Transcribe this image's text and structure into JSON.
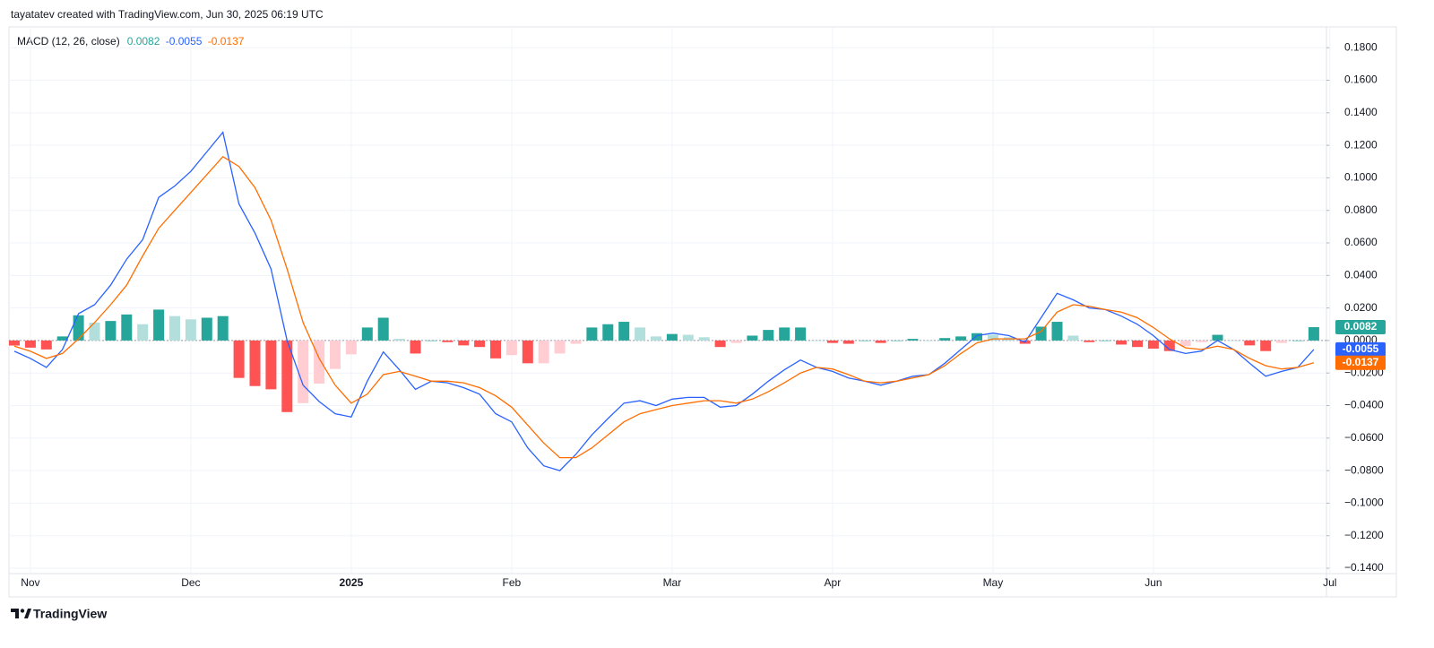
{
  "header": {
    "credit": "tayatatev created with TradingView.com, Jun 30, 2025 06:19 UTC"
  },
  "footer": {
    "brand": "TradingView"
  },
  "chart_data": {
    "type": "macd",
    "title": "MACD (12, 26, close)",
    "categories": [
      null,
      "Nov",
      null,
      null,
      null,
      null,
      null,
      null,
      null,
      null,
      null,
      "Dec",
      null,
      null,
      null,
      null,
      null,
      null,
      null,
      null,
      null,
      "2025",
      null,
      null,
      null,
      null,
      null,
      null,
      null,
      null,
      null,
      "Feb",
      null,
      null,
      null,
      null,
      null,
      null,
      null,
      null,
      null,
      "Mar",
      null,
      null,
      null,
      null,
      null,
      null,
      null,
      null,
      null,
      "Apr",
      null,
      null,
      null,
      null,
      null,
      null,
      null,
      null,
      null,
      "May",
      null,
      null,
      null,
      null,
      null,
      null,
      null,
      null,
      null,
      "Jun",
      null,
      null,
      null,
      null,
      null,
      null,
      null,
      null,
      null,
      null,
      "Jul"
    ],
    "series": [
      {
        "type": "histogram",
        "colors": [
          "#26a69a",
          "#b2dfdb",
          "#ffcdd2",
          "#ff5252"
        ],
        "color": "#26a69a",
        "values": [
          -0.0031,
          -0.0044,
          -0.0055,
          0.0025,
          0.0155,
          0.011,
          0.012,
          0.016,
          0.01,
          0.019,
          0.015,
          0.013,
          0.014,
          0.015,
          -0.023,
          -0.028,
          -0.03,
          -0.044,
          -0.0385,
          -0.0265,
          -0.0175,
          -0.0085,
          0.008,
          0.014,
          0.001,
          -0.008,
          0,
          -0.001,
          -0.003,
          -0.004,
          -0.011,
          -0.009,
          -0.014,
          -0.014,
          -0.008,
          -0.002,
          0.008,
          0.01,
          0.0115,
          0.008,
          0.0025,
          0.004,
          0.0035,
          0.002,
          -0.004,
          -0.0015,
          0.003,
          0.0065,
          0.008,
          0.008,
          0,
          -0.0015,
          -0.002,
          0,
          -0.0015,
          0,
          0.001,
          0,
          0.0015,
          0.0025,
          0.0045,
          0.0035,
          0.002,
          -0.002,
          0.0085,
          0.0115,
          0.003,
          -0.001,
          0,
          -0.0025,
          -0.004,
          -0.005,
          -0.0065,
          -0.0035,
          -0.001,
          0.0035,
          0,
          -0.003,
          -0.0065,
          -0.0015,
          0,
          0.0082,
          null
        ]
      },
      {
        "type": "line",
        "color": "#2962ff",
        "values": [
          -0.0066,
          -0.011,
          -0.0165,
          -0.0055,
          0.0165,
          0.022,
          0.034,
          0.05,
          0.062,
          0.088,
          0.095,
          0.104,
          0.116,
          0.128,
          0.084,
          0.066,
          0.044,
          0,
          -0.0275,
          -0.0375,
          -0.045,
          -0.047,
          -0.025,
          -0.007,
          -0.018,
          -0.03,
          -0.025,
          -0.026,
          -0.029,
          -0.033,
          -0.045,
          -0.05,
          -0.066,
          -0.077,
          -0.08,
          -0.07,
          -0.058,
          -0.048,
          -0.0385,
          -0.037,
          -0.04,
          -0.036,
          -0.035,
          -0.035,
          -0.041,
          -0.04,
          -0.033,
          -0.025,
          -0.018,
          -0.012,
          -0.0165,
          -0.019,
          -0.023,
          -0.025,
          -0.0275,
          -0.025,
          -0.022,
          -0.021,
          -0.014,
          -0.0055,
          0.003,
          0.0045,
          0.003,
          -0.001,
          0.014,
          0.029,
          0.025,
          0.02,
          0.019,
          0.015,
          0.01,
          0.003,
          -0.0055,
          -0.008,
          -0.0065,
          0,
          -0.0055,
          -0.014,
          -0.022,
          -0.019,
          -0.0165,
          -0.0055,
          null
        ]
      },
      {
        "type": "line",
        "color": "#ff6d00",
        "values": [
          -0.0035,
          -0.0066,
          -0.011,
          -0.008,
          0.001,
          0.011,
          0.022,
          0.034,
          0.052,
          0.069,
          0.08,
          0.091,
          0.102,
          0.113,
          0.107,
          0.094,
          0.074,
          0.044,
          0.011,
          -0.011,
          -0.0275,
          -0.0385,
          -0.033,
          -0.021,
          -0.019,
          -0.022,
          -0.025,
          -0.025,
          -0.026,
          -0.029,
          -0.034,
          -0.041,
          -0.052,
          -0.063,
          -0.072,
          -0.072,
          -0.066,
          -0.058,
          -0.05,
          -0.045,
          -0.0425,
          -0.04,
          -0.0385,
          -0.037,
          -0.037,
          -0.0385,
          -0.036,
          -0.0315,
          -0.026,
          -0.02,
          -0.0165,
          -0.0175,
          -0.021,
          -0.025,
          -0.026,
          -0.025,
          -0.023,
          -0.021,
          -0.0155,
          -0.008,
          -0.0015,
          0.001,
          0.001,
          0.001,
          0.0055,
          0.0175,
          0.022,
          0.021,
          0.019,
          0.0175,
          0.014,
          0.008,
          0.001,
          -0.0045,
          -0.0055,
          -0.0035,
          -0.0055,
          -0.011,
          -0.0155,
          -0.0175,
          -0.0165,
          -0.0137,
          null
        ]
      }
    ],
    "ylim": [
      -0.14,
      0.1928
    ],
    "yticks": [
      {
        "value": 0.18,
        "label": "0.1800"
      },
      {
        "value": 0.16,
        "label": "0.1600"
      },
      {
        "value": 0.14,
        "label": "0.1400"
      },
      {
        "value": 0.12,
        "label": "0.1200"
      },
      {
        "value": 0.1,
        "label": "0.1000"
      },
      {
        "value": 0.08,
        "label": "0.0800"
      },
      {
        "value": 0.06,
        "label": "0.0600"
      },
      {
        "value": 0.04,
        "label": "0.0400"
      },
      {
        "value": 0.02,
        "label": "0.0200"
      },
      {
        "value": 0,
        "label": "0.0000"
      },
      {
        "value": -0.02,
        "label": "−0.0200"
      },
      {
        "value": -0.04,
        "label": "−0.0400"
      },
      {
        "value": -0.06,
        "label": "−0.0600"
      },
      {
        "value": -0.08,
        "label": "−0.0800"
      },
      {
        "value": -0.1,
        "label": "−0.1000"
      },
      {
        "value": -0.12,
        "label": "−0.1200"
      },
      {
        "value": -0.14,
        "label": "−0.1400"
      }
    ],
    "grid": true
  }
}
